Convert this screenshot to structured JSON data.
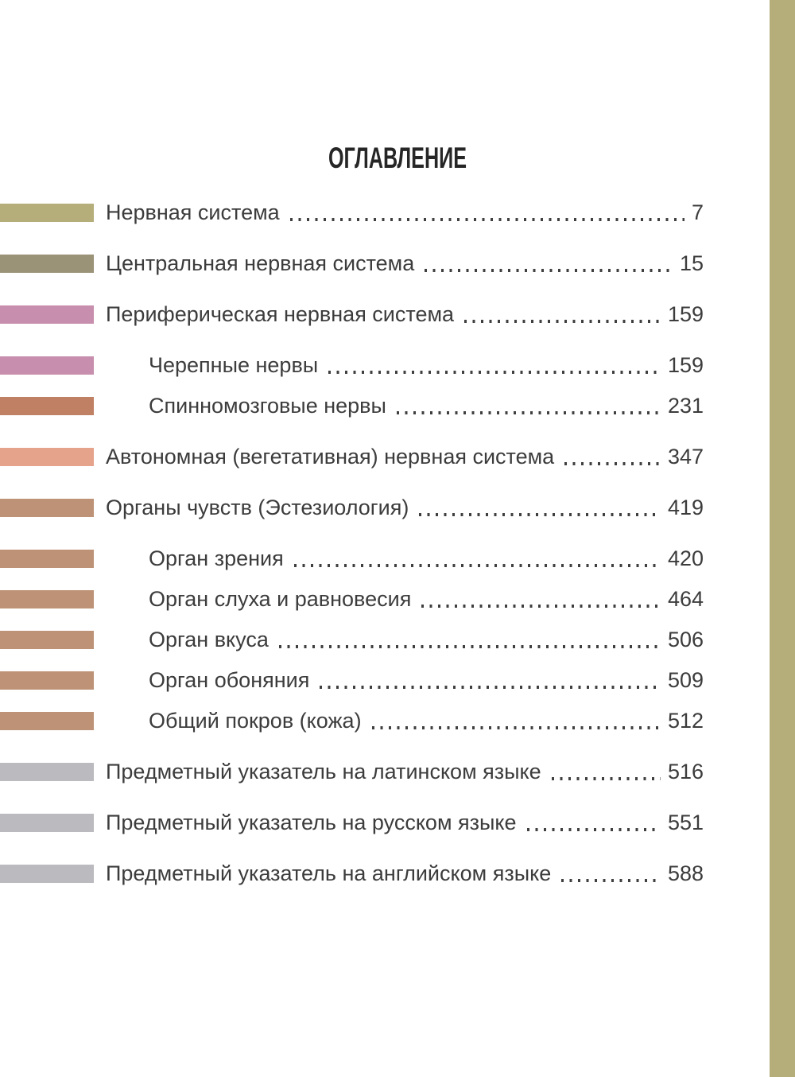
{
  "page": {
    "title": "ОГЛАВЛЕНИЕ",
    "edge_band_color": "#b5ae7b",
    "background_color": "#ffffff",
    "text_color": "#3c3c3c"
  },
  "toc": {
    "entries": [
      {
        "label": "Нервная система",
        "page": "7",
        "bar_color": "#b5ae7b",
        "indent": false
      },
      {
        "label": "Центральная нервная система",
        "page": "15",
        "bar_color": "#9b9377",
        "indent": false
      },
      {
        "label": "Периферическая нервная система",
        "page": "159",
        "bar_color": "#c78fad",
        "indent": false
      },
      {
        "label": "Черепные нервы",
        "page": "159",
        "bar_color": "#c78fad",
        "indent": true
      },
      {
        "label": "Спинномозговые нервы",
        "page": "231",
        "bar_color": "#c08064",
        "indent": true
      },
      {
        "label": "Автономная (вегетативная) нервная система",
        "page": "347",
        "bar_color": "#e6a38b",
        "indent": false
      },
      {
        "label": "Органы чувств (Эстезиология)",
        "page": "419",
        "bar_color": "#bd9276",
        "indent": false
      },
      {
        "label": "Орган зрения",
        "page": "420",
        "bar_color": "#bd9276",
        "indent": true
      },
      {
        "label": "Орган слуха и равновесия",
        "page": "464",
        "bar_color": "#bd9276",
        "indent": true
      },
      {
        "label": "Орган вкуса",
        "page": "506",
        "bar_color": "#bd9276",
        "indent": true
      },
      {
        "label": "Орган обоняния",
        "page": "509",
        "bar_color": "#bd9276",
        "indent": true
      },
      {
        "label": "Общий покров (кожа)",
        "page": "512",
        "bar_color": "#bd9276",
        "indent": true
      },
      {
        "label": "Предметный указатель на латинском языке",
        "page": "516",
        "bar_color": "#bbbbbf",
        "indent": false
      },
      {
        "label": "Предметный указатель на русском языке",
        "page": "551",
        "bar_color": "#bbbbbf",
        "indent": false
      },
      {
        "label": "Предметный указатель на английском языке",
        "page": "588",
        "bar_color": "#bbbbbf",
        "indent": false
      }
    ]
  }
}
